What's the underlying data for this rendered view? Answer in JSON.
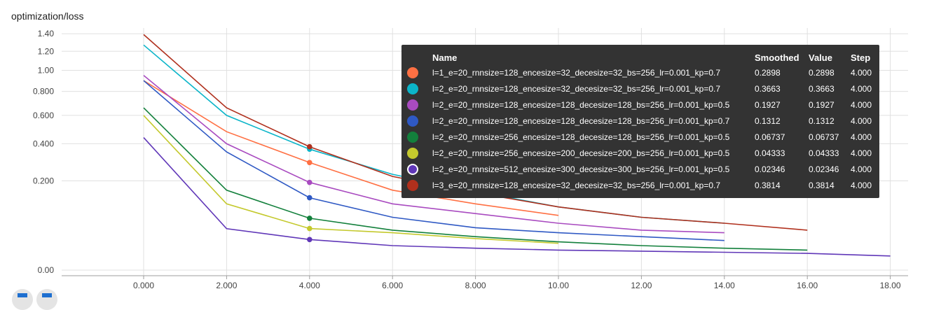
{
  "chart_data": {
    "type": "line",
    "title": "optimization/loss",
    "x_ticks": [
      "0.000",
      "2.000",
      "4.000",
      "6.000",
      "8.000",
      "10.00",
      "12.00",
      "14.00",
      "16.00",
      "18.00"
    ],
    "y_ticks": [
      "0.00",
      "0.200",
      "0.400",
      "0.600",
      "0.800",
      "1.00",
      "1.20",
      "1.40"
    ],
    "xlim": [
      -2,
      19
    ],
    "y_scale": "sqrt",
    "grid": true,
    "highlight_step": 4,
    "series": [
      {
        "name": "l=1_e=20_rnnsize=128_encesize=32_decesize=32_bs=256_lr=0.001_kp=0.7",
        "color": "#ff7043",
        "x": [
          0,
          2,
          4,
          6,
          8,
          10
        ],
        "y": [
          0.9,
          0.48,
          0.2898,
          0.16,
          0.11,
          0.075
        ]
      },
      {
        "name": "l=2_e=20_rnnsize=128_encesize=32_decesize=32_bs=256_lr=0.001_kp=0.7",
        "color": "#0bb5c9",
        "x": [
          0,
          2,
          4,
          6,
          8,
          10,
          12,
          14
        ],
        "y": [
          1.27,
          0.6,
          0.3663,
          0.23,
          0.155,
          0.1,
          0.07,
          0.055
        ]
      },
      {
        "name": "l=2_e=20_rnnsize=128_encesize=128_decesize=128_bs=256_lr=0.001_kp=0.5",
        "color": "#a94bc0",
        "x": [
          0,
          2,
          4,
          6,
          8,
          10,
          12,
          14
        ],
        "y": [
          0.95,
          0.4,
          0.1927,
          0.11,
          0.08,
          0.055,
          0.04,
          0.035
        ]
      },
      {
        "name": "l=2_e=20_rnnsize=128_encesize=128_decesize=128_bs=256_lr=0.001_kp=0.7",
        "color": "#2f59c4",
        "x": [
          0,
          2,
          4,
          6,
          8,
          10,
          12,
          14
        ],
        "y": [
          0.9,
          0.35,
          0.1312,
          0.07,
          0.045,
          0.035,
          0.028,
          0.022
        ]
      },
      {
        "name": "l=2_e=20_rnnsize=256_encesize=128_decesize=128_bs=256_lr=0.001_kp=0.5",
        "color": "#13803c",
        "x": [
          0,
          2,
          4,
          6,
          8,
          10,
          12,
          14,
          16
        ],
        "y": [
          0.66,
          0.16,
          0.06737,
          0.04,
          0.028,
          0.02,
          0.015,
          0.012,
          0.01
        ]
      },
      {
        "name": "l=2_e=20_rnnsize=256_encesize=200_decesize=200_bs=256_lr=0.001_kp=0.5",
        "color": "#c4c92d",
        "x": [
          0,
          2,
          4,
          6,
          8,
          10
        ],
        "y": [
          0.6,
          0.11,
          0.04333,
          0.035,
          0.025,
          0.018
        ]
      },
      {
        "name": "l=2_e=20_rnnsize=512_encesize=300_decesize=300_bs=256_lr=0.001_kp=0.5",
        "color": "#6037b8",
        "x": [
          0,
          2,
          4,
          6,
          8,
          10,
          12,
          14,
          16,
          18
        ],
        "y": [
          0.44,
          0.043,
          0.02346,
          0.015,
          0.012,
          0.01,
          0.009,
          0.008,
          0.007,
          0.005
        ]
      },
      {
        "name": "l=3_e=20_rnnsize=128_encesize=32_decesize=32_bs=256_lr=0.001_kp=0.7",
        "color": "#b0301d",
        "x": [
          0,
          2,
          4,
          6,
          8,
          10,
          12,
          14,
          16
        ],
        "y": [
          1.39,
          0.66,
          0.3814,
          0.22,
          0.15,
          0.1,
          0.07,
          0.055,
          0.04
        ]
      }
    ]
  },
  "tooltip": {
    "headers": {
      "name": "Name",
      "smoothed": "Smoothed",
      "value": "Value",
      "step": "Step"
    },
    "rows": [
      {
        "name": "l=1_e=20_rnnsize=128_encesize=32_decesize=32_bs=256_lr=0.001_kp=0.7",
        "color": "#ff7043",
        "hollow": false,
        "smoothed": "0.2898",
        "value": "0.2898",
        "step": "4.000"
      },
      {
        "name": "l=2_e=20_rnnsize=128_encesize=32_decesize=32_bs=256_lr=0.001_kp=0.7",
        "color": "#0bb5c9",
        "hollow": false,
        "smoothed": "0.3663",
        "value": "0.3663",
        "step": "4.000"
      },
      {
        "name": "l=2_e=20_rnnsize=128_encesize=128_decesize=128_bs=256_lr=0.001_kp=0.5",
        "color": "#a94bc0",
        "hollow": false,
        "smoothed": "0.1927",
        "value": "0.1927",
        "step": "4.000"
      },
      {
        "name": "l=2_e=20_rnnsize=128_encesize=128_decesize=128_bs=256_lr=0.001_kp=0.7",
        "color": "#2f59c4",
        "hollow": false,
        "smoothed": "0.1312",
        "value": "0.1312",
        "step": "4.000"
      },
      {
        "name": "l=2_e=20_rnnsize=256_encesize=128_decesize=128_bs=256_lr=0.001_kp=0.5",
        "color": "#13803c",
        "hollow": false,
        "smoothed": "0.06737",
        "value": "0.06737",
        "step": "4.000"
      },
      {
        "name": "l=2_e=20_rnnsize=256_encesize=200_decesize=200_bs=256_lr=0.001_kp=0.5",
        "color": "#c4c92d",
        "hollow": false,
        "smoothed": "0.04333",
        "value": "0.04333",
        "step": "4.000"
      },
      {
        "name": "l=2_e=20_rnnsize=512_encesize=300_decesize=300_bs=256_lr=0.001_kp=0.5",
        "color": "#6037b8",
        "hollow": true,
        "smoothed": "0.02346",
        "value": "0.02346",
        "step": "4.000"
      },
      {
        "name": "l=3_e=20_rnnsize=128_encesize=32_decesize=32_bs=256_lr=0.001_kp=0.7",
        "color": "#b0301d",
        "hollow": false,
        "smoothed": "0.3814",
        "value": "0.3814",
        "step": "4.000"
      }
    ]
  },
  "controls": {
    "fit_icon": "expand-icon",
    "data_icon": "data-table-icon"
  }
}
